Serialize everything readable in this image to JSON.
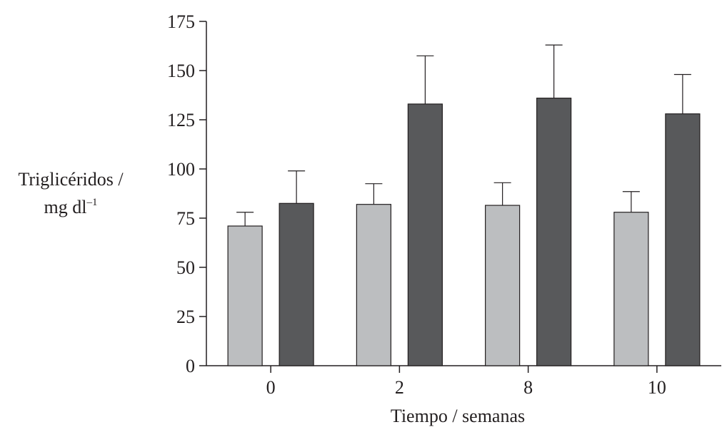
{
  "chart_data": {
    "type": "bar",
    "xlabel": "Tiempo / semanas",
    "ylabel": {
      "line1": "Triglicéridos /",
      "line2": "mg dl",
      "line2_superscript": "–1"
    },
    "categories": [
      "0",
      "2",
      "8",
      "10"
    ],
    "ylim": [
      0,
      175
    ],
    "yticks": [
      "0",
      "25",
      "50",
      "75",
      "100",
      "125",
      "150",
      "175"
    ],
    "grid": false,
    "legend": "none",
    "series": [
      {
        "color": "#bcbec0",
        "values": [
          71,
          82,
          81.5,
          78
        ],
        "error_upper": [
          78,
          92.5,
          93,
          88.5
        ]
      },
      {
        "color": "#58595b",
        "values": [
          82.5,
          133,
          136,
          128
        ],
        "error_upper": [
          99,
          157.5,
          163,
          148
        ]
      }
    ]
  }
}
